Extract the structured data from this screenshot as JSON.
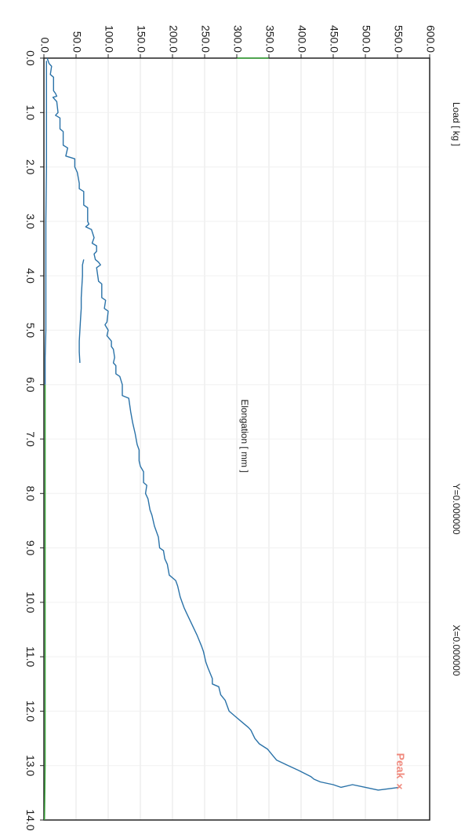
{
  "chart_data": {
    "type": "line",
    "orientation": "rotated-90-clockwise",
    "xlabel": "Elongation [ mm ]",
    "ylabel": "Load [ kg ]",
    "xlim": [
      0,
      14
    ],
    "ylim": [
      0,
      600
    ],
    "x_ticks": [
      "0.0",
      "1.0",
      "2.0",
      "3.0",
      "4.0",
      "5.0",
      "6.0",
      "7.0",
      "8.0",
      "9.0",
      "10.0",
      "11.0",
      "12.0",
      "13.0",
      "14.0"
    ],
    "y_ticks": [
      "0.0",
      "50.0",
      "100.0",
      "150.0",
      "200.0",
      "250.0",
      "300.0",
      "350.0",
      "400.0",
      "450.0",
      "500.0",
      "550.0",
      "600.0"
    ],
    "readouts": {
      "y": "Y=0.000000",
      "x": "X=0.000000"
    },
    "peak": {
      "label": "Peak",
      "marker": "×",
      "x": 13.4,
      "y": 553,
      "color": "#f08a7e"
    },
    "grid": true,
    "series": [
      {
        "color": "#2a72a8",
        "points": [
          [
            0.0,
            5
          ],
          [
            0.1,
            8
          ],
          [
            0.15,
            12
          ],
          [
            0.3,
            10
          ],
          [
            0.35,
            15
          ],
          [
            0.6,
            15
          ],
          [
            0.65,
            18
          ],
          [
            0.7,
            20
          ],
          [
            0.72,
            14
          ],
          [
            0.8,
            20
          ],
          [
            1.0,
            22
          ],
          [
            1.05,
            18
          ],
          [
            1.1,
            25
          ],
          [
            1.3,
            25
          ],
          [
            1.35,
            30
          ],
          [
            1.6,
            30
          ],
          [
            1.65,
            37
          ],
          [
            1.8,
            34
          ],
          [
            1.85,
            48
          ],
          [
            2.0,
            48
          ],
          [
            2.1,
            52
          ],
          [
            2.3,
            55
          ],
          [
            2.4,
            55
          ],
          [
            2.45,
            62
          ],
          [
            2.7,
            62
          ],
          [
            2.75,
            68
          ],
          [
            3.0,
            68
          ],
          [
            3.05,
            70
          ],
          [
            3.1,
            65
          ],
          [
            3.15,
            74
          ],
          [
            3.3,
            78
          ],
          [
            3.4,
            75
          ],
          [
            3.45,
            82
          ],
          [
            3.55,
            82
          ],
          [
            3.6,
            78
          ],
          [
            3.7,
            80
          ],
          [
            3.75,
            85
          ],
          [
            3.8,
            88
          ],
          [
            3.85,
            82
          ],
          [
            4.1,
            85
          ],
          [
            4.15,
            90
          ],
          [
            4.4,
            90
          ],
          [
            4.45,
            96
          ],
          [
            4.6,
            94
          ],
          [
            4.65,
            100
          ],
          [
            4.85,
            98
          ],
          [
            4.9,
            95
          ],
          [
            5.0,
            100
          ],
          [
            5.1,
            98
          ],
          [
            5.2,
            105
          ],
          [
            5.3,
            105
          ],
          [
            5.35,
            108
          ],
          [
            5.5,
            110
          ],
          [
            5.6,
            108
          ],
          [
            5.65,
            112
          ],
          [
            5.8,
            112
          ],
          [
            5.85,
            118
          ],
          [
            6.0,
            122
          ],
          [
            6.2,
            122
          ],
          [
            6.25,
            132
          ],
          [
            6.5,
            135
          ],
          [
            6.7,
            138
          ],
          [
            6.9,
            142
          ],
          [
            7.1,
            145
          ],
          [
            7.2,
            148
          ],
          [
            7.4,
            148
          ],
          [
            7.5,
            150
          ],
          [
            7.6,
            155
          ],
          [
            7.8,
            155
          ],
          [
            7.85,
            160
          ],
          [
            8.0,
            158
          ],
          [
            8.1,
            162
          ],
          [
            8.3,
            165
          ],
          [
            8.4,
            168
          ],
          [
            8.6,
            172
          ],
          [
            8.8,
            178
          ],
          [
            9.0,
            180
          ],
          [
            9.05,
            186
          ],
          [
            9.2,
            188
          ],
          [
            9.3,
            192
          ],
          [
            9.5,
            195
          ],
          [
            9.6,
            205
          ],
          [
            9.7,
            208
          ],
          [
            9.9,
            212
          ],
          [
            10.0,
            215
          ],
          [
            10.1,
            218
          ],
          [
            10.2,
            222
          ],
          [
            10.4,
            230
          ],
          [
            10.6,
            238
          ],
          [
            10.8,
            245
          ],
          [
            10.9,
            248
          ],
          [
            11.1,
            252
          ],
          [
            11.2,
            255
          ],
          [
            11.4,
            262
          ],
          [
            11.5,
            262
          ],
          [
            11.55,
            272
          ],
          [
            11.7,
            275
          ],
          [
            11.8,
            282
          ],
          [
            12.0,
            288
          ],
          [
            12.1,
            298
          ],
          [
            12.2,
            308
          ],
          [
            12.3,
            318
          ],
          [
            12.35,
            322
          ],
          [
            12.5,
            328
          ],
          [
            12.6,
            335
          ],
          [
            12.7,
            348
          ],
          [
            12.8,
            355
          ],
          [
            12.9,
            362
          ],
          [
            13.0,
            380
          ],
          [
            13.1,
            398
          ],
          [
            13.2,
            415
          ],
          [
            13.25,
            420
          ],
          [
            13.3,
            430
          ],
          [
            13.35,
            450
          ],
          [
            13.4,
            462
          ],
          [
            13.35,
            480
          ],
          [
            13.4,
            500
          ],
          [
            13.45,
            520
          ],
          [
            13.42,
            540
          ],
          [
            13.4,
            553
          ]
        ]
      },
      {
        "color": "#2a72a8",
        "points": [
          [
            5.6,
            56
          ],
          [
            5.4,
            55
          ],
          [
            5.2,
            55
          ],
          [
            5.0,
            56
          ],
          [
            4.8,
            57
          ],
          [
            4.6,
            58
          ],
          [
            4.4,
            58
          ],
          [
            4.2,
            59
          ],
          [
            4.0,
            60
          ],
          [
            3.8,
            60
          ],
          [
            3.7,
            62
          ]
        ]
      },
      {
        "color": "#2a72a8",
        "points": [
          [
            0.05,
            4
          ],
          [
            1.0,
            4
          ],
          [
            2.0,
            4
          ],
          [
            3.0,
            3
          ],
          [
            4.0,
            3
          ],
          [
            5.0,
            3
          ],
          [
            5.5,
            2
          ],
          [
            6.0,
            2
          ]
        ]
      },
      {
        "color": "#3aaa3a",
        "points": [
          [
            6.0,
            2
          ],
          [
            7.0,
            2
          ],
          [
            8.0,
            2
          ],
          [
            9.0,
            2
          ],
          [
            10.0,
            2
          ],
          [
            11.0,
            2
          ],
          [
            12.0,
            2
          ],
          [
            13.0,
            2
          ],
          [
            14.0,
            1
          ]
        ]
      },
      {
        "color": "#3aaa3a",
        "points": [
          [
            0.0,
            300
          ],
          [
            0.0,
            350
          ]
        ]
      }
    ]
  }
}
